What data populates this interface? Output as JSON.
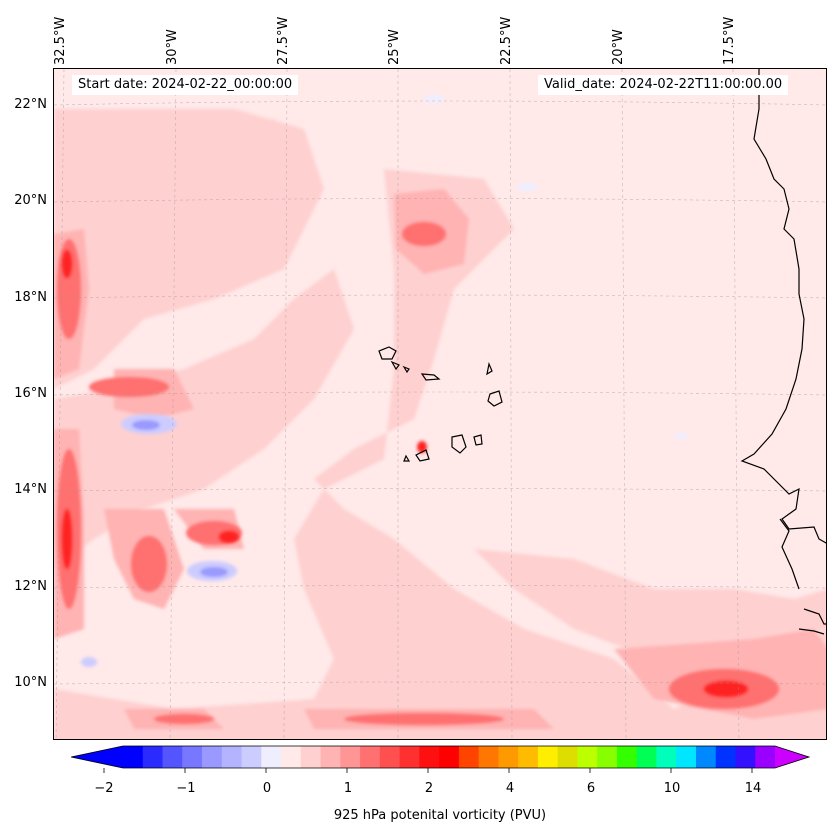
{
  "map": {
    "start_date": "Start date: 2024-02-22_00:00:00",
    "valid_date": "Valid_date: 2024-02-22T11:00:00.00",
    "longitude_labels": [
      "32.5°W",
      "30°W",
      "27.5°W",
      "25°W",
      "22.5°W",
      "20°W",
      "17.5°W"
    ],
    "latitude_labels": [
      "22°N",
      "20°N",
      "18°N",
      "16°N",
      "14°N",
      "12°N",
      "10°N"
    ],
    "land_color": "#000000",
    "background_color": "#ffe9e9"
  },
  "colorbar": {
    "label": "925 hPa potenital vorticity (PVU)",
    "tick_labels": [
      "−2",
      "−1",
      "0",
      "1",
      "2",
      "4",
      "6",
      "10",
      "14"
    ],
    "colors": [
      "#0000ff",
      "#2b2bff",
      "#5555ff",
      "#7777ff",
      "#9999ff",
      "#b3b3ff",
      "#ccccff",
      "#eeeeff",
      "#ffe9e9",
      "#ffd0d0",
      "#ffb3b3",
      "#ff9595",
      "#ff7070",
      "#ff5050",
      "#ff3030",
      "#ff1010",
      "#ff0000",
      "#ff4400",
      "#ff7700",
      "#ff9900",
      "#ffbb00",
      "#ffee00",
      "#dddd00",
      "#bbff00",
      "#88ff00",
      "#33ff00",
      "#00ff55",
      "#00ffbb",
      "#00e6ff",
      "#0088ff",
      "#0033ff",
      "#3311ff",
      "#9900ff"
    ],
    "under_color": "#0000ff",
    "over_color": "#cc00ff"
  }
}
